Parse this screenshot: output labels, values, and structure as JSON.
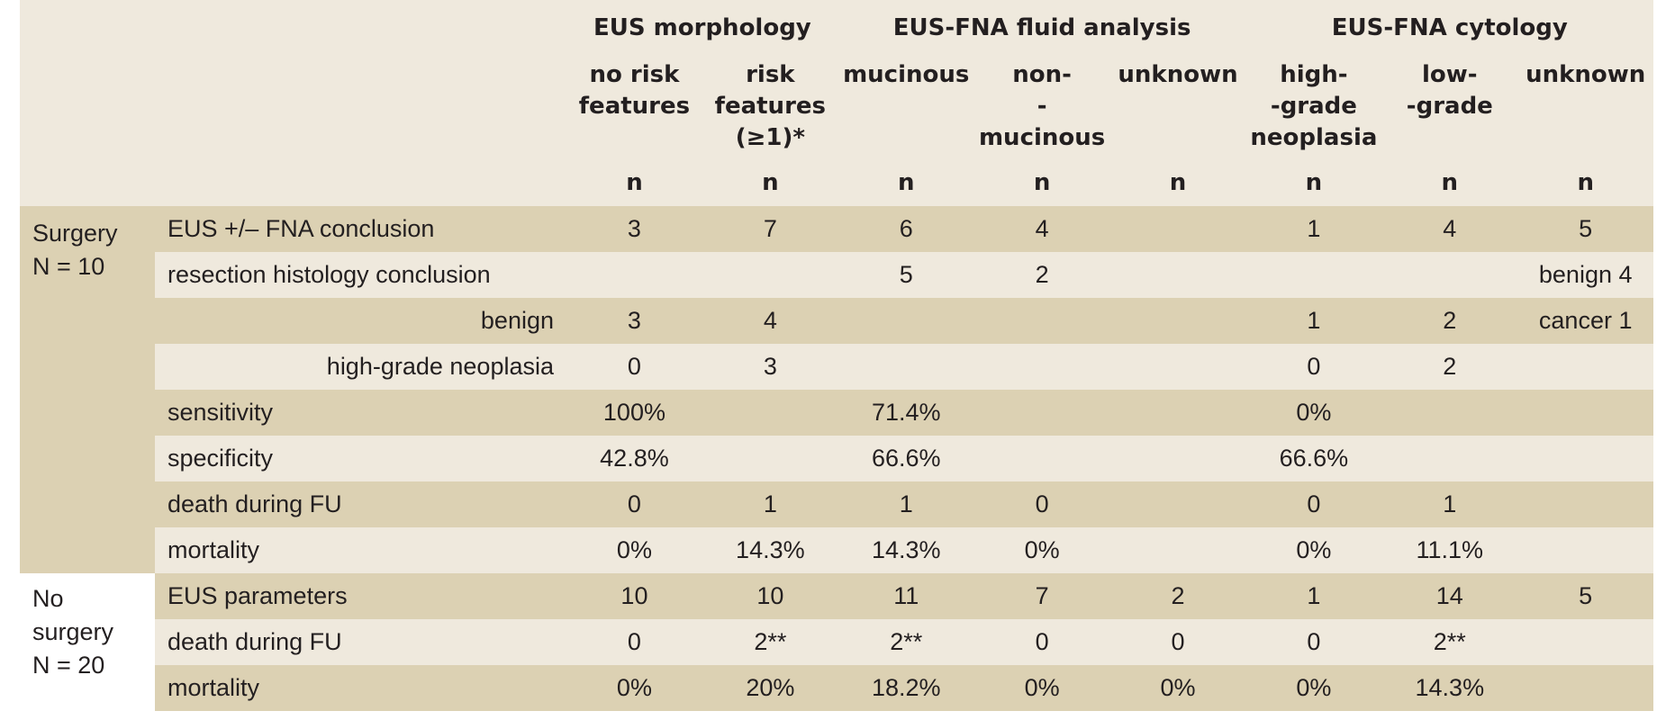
{
  "header": {
    "groups": [
      "EUS morphology",
      "EUS-FNA fluid analysis",
      "EUS-FNA cytology"
    ],
    "subheaders": [
      [
        "no risk",
        "features"
      ],
      [
        "risk",
        "features",
        "(≥1)*"
      ],
      [
        "mucinous"
      ],
      [
        "non-",
        "-mucinous"
      ],
      [
        "unknown"
      ],
      [
        "high-",
        "-grade",
        "neoplasia"
      ],
      [
        "low-",
        "-grade"
      ],
      [
        "unknown"
      ]
    ],
    "n_label": "n"
  },
  "groups": [
    {
      "label_line1": "Surgery",
      "label_line2": "N = 10",
      "label_line3": ""
    },
    {
      "label_line1": "No",
      "label_line2": "surgery",
      "label_line3": "N = 20"
    }
  ],
  "rows": [
    {
      "label": "EUS +/– FNA conclusion",
      "values": [
        "3",
        "7",
        "6",
        "4",
        "",
        "1",
        "4",
        "5"
      ]
    },
    {
      "label": "resection histology conclusion",
      "values": [
        "",
        "",
        "5",
        "2",
        "",
        "",
        "",
        "benign 4"
      ]
    },
    {
      "label": "benign",
      "values": [
        "3",
        "4",
        "",
        "",
        "",
        "1",
        "2",
        "cancer 1"
      ]
    },
    {
      "label": "high-grade neoplasia",
      "values": [
        "0",
        "3",
        "",
        "",
        "",
        "0",
        "2",
        ""
      ]
    },
    {
      "label": "sensitivity",
      "values": [
        "100%",
        "",
        "71.4%",
        "",
        "",
        "0%",
        "",
        ""
      ]
    },
    {
      "label": "specificity",
      "values": [
        "42.8%",
        "",
        "66.6%",
        "",
        "",
        "66.6%",
        "",
        ""
      ]
    },
    {
      "label": "death during FU",
      "values": [
        "0",
        "1",
        "1",
        "0",
        "",
        "0",
        "1",
        ""
      ]
    },
    {
      "label": "mortality",
      "values": [
        "0%",
        "14.3%",
        "14.3%",
        "0%",
        "",
        "0%",
        "11.1%",
        ""
      ]
    },
    {
      "label": "EUS parameters",
      "values": [
        "10",
        "10",
        "11",
        "7",
        "2",
        "1",
        "14",
        "5"
      ]
    },
    {
      "label": "death during FU",
      "values": [
        "0",
        "2**",
        "2**",
        "0",
        "0",
        "0",
        "2**",
        ""
      ]
    },
    {
      "label": "mortality",
      "values": [
        "0%",
        "20%",
        "18.2%",
        "0%",
        "0%",
        "0%",
        "14.3%",
        ""
      ]
    }
  ],
  "colors": {
    "dark_band": "#dcd1b3",
    "light_band": "#efe9dd",
    "text": "#231f20"
  }
}
